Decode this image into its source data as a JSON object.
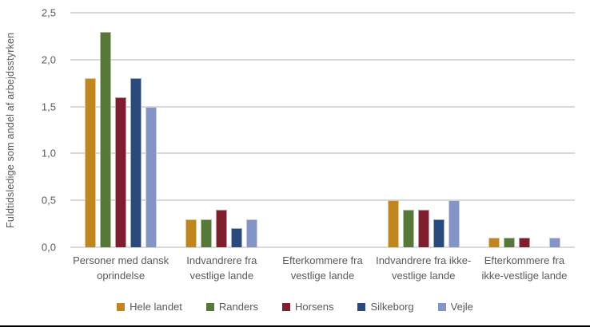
{
  "chart_data": {
    "type": "bar",
    "title": "",
    "xlabel": "",
    "ylabel": "Fuldtidsledige som andel af arbejdsstyrken",
    "ylim": [
      0,
      2.5
    ],
    "ytick_step": 0.5,
    "yticks": [
      "0,0",
      "0,5",
      "1,0",
      "1,5",
      "2,0",
      "2,5"
    ],
    "grid": true,
    "legend_position": "bottom",
    "categories": [
      "Personer med dansk oprindelse",
      "Indvandrere fra vestlige lande",
      "Efterkommere fra vestlige lande",
      "Indvandrere fra ikke-vestlige lande",
      "Efterkommere fra ikke-vestlige lande"
    ],
    "series": [
      {
        "name": "Hele landet",
        "color": "#C08620",
        "values": [
          1.8,
          0.3,
          0,
          0.5,
          0.1
        ]
      },
      {
        "name": "Randers",
        "color": "#567939",
        "values": [
          2.3,
          0.3,
          0,
          0.4,
          0.1
        ]
      },
      {
        "name": "Horsens",
        "color": "#7E1E2E",
        "values": [
          1.6,
          0.4,
          0,
          0.4,
          0.1
        ]
      },
      {
        "name": "Silkeborg",
        "color": "#2A4A7D",
        "values": [
          1.8,
          0.2,
          0,
          0.3,
          0
        ]
      },
      {
        "name": "Vejle",
        "color": "#8494C6",
        "values": [
          1.5,
          0.3,
          0,
          0.5,
          0.1
        ]
      }
    ]
  },
  "colors": {
    "gridline": "#D9D9D9",
    "axis_text": "#595959",
    "background": "#FFFFFF",
    "bottom_rule": "#000000"
  }
}
